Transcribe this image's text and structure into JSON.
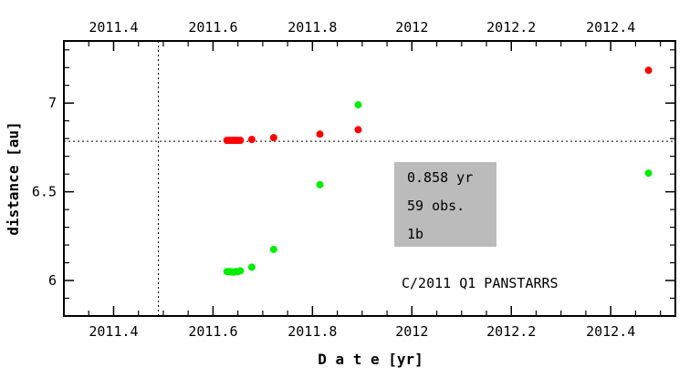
{
  "chart_data": {
    "type": "scatter",
    "title": "",
    "xlabel": "D a t e [yr]",
    "ylabel": "distance [au]",
    "xlim": [
      2011.3,
      2012.53
    ],
    "ylim": [
      5.8,
      7.35
    ],
    "x_ticks": [
      2011.4,
      2011.6,
      2011.8,
      2012,
      2012.2,
      2012.4
    ],
    "x_tick_labels": [
      "2011.4",
      "2011.6",
      "2011.8",
      "2012",
      "2012.2",
      "2012.4"
    ],
    "y_ticks": [
      6,
      6.5,
      7
    ],
    "y_tick_labels": [
      "6",
      "6.5",
      "7"
    ],
    "grid": false,
    "reference_lines": {
      "vertical_x": 2011.49,
      "horizontal_y": 6.785
    },
    "series": [
      {
        "color": "#ff0000",
        "points": [
          [
            2011.628,
            6.79
          ],
          [
            2011.633,
            6.79
          ],
          [
            2011.638,
            6.79
          ],
          [
            2011.642,
            6.79
          ],
          [
            2011.646,
            6.79
          ],
          [
            2011.65,
            6.79
          ],
          [
            2011.655,
            6.79
          ],
          [
            2011.678,
            6.795
          ],
          [
            2011.722,
            6.805
          ],
          [
            2011.815,
            6.825
          ],
          [
            2011.892,
            6.85
          ],
          [
            2012.476,
            7.185
          ]
        ]
      },
      {
        "color": "#00ee00",
        "points": [
          [
            2011.628,
            6.05
          ],
          [
            2011.633,
            6.05
          ],
          [
            2011.638,
            6.048
          ],
          [
            2011.642,
            6.047
          ],
          [
            2011.646,
            6.05
          ],
          [
            2011.65,
            6.05
          ],
          [
            2011.655,
            6.055
          ],
          [
            2011.678,
            6.075
          ],
          [
            2011.722,
            6.175
          ],
          [
            2011.815,
            6.54
          ],
          [
            2011.892,
            6.99
          ],
          [
            2012.476,
            6.605
          ]
        ]
      }
    ],
    "annotation_box": {
      "lines": [
        "0.858 yr",
        "59 obs.",
        "1b"
      ],
      "fill": "#bbbbbb"
    },
    "object_name": "C/2011 Q1 PANSTARRS"
  }
}
